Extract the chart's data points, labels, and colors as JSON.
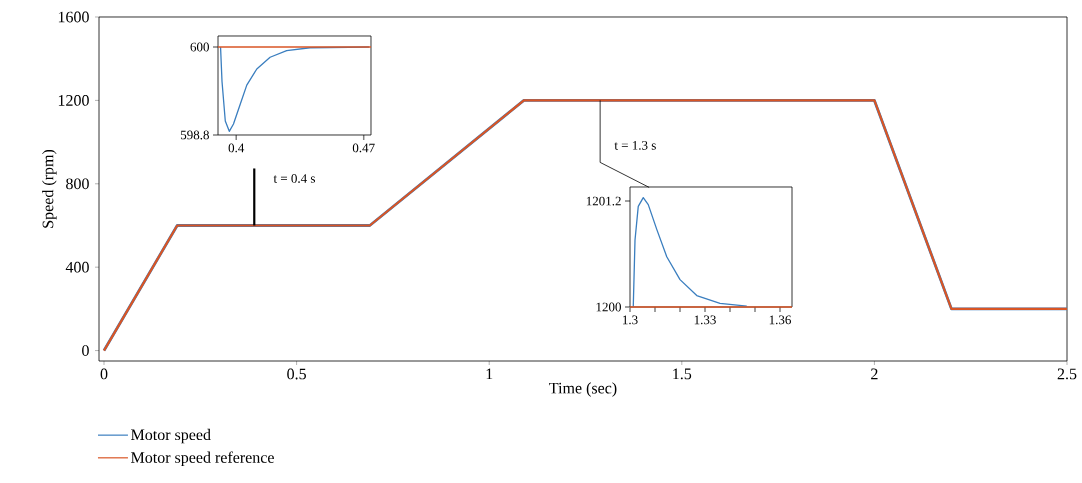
{
  "chart_data": [
    {
      "type": "line",
      "xlabel": "Time (sec)",
      "ylabel": "Speed (rpm)",
      "xlim": [
        -0.013,
        2.5
      ],
      "ylim": [
        -50,
        1600
      ],
      "xticks": [
        0,
        0.5,
        1,
        1.5,
        2,
        2.5
      ],
      "yticks": [
        0,
        400,
        800,
        1200,
        1600
      ],
      "series": [
        {
          "name": "Motor speed",
          "color": "#3a7ebf",
          "x": [
            0,
            0.19,
            0.69,
            1.09,
            2.0,
            2.2,
            2.5
          ],
          "values": [
            0,
            600,
            600,
            1200,
            1200,
            200,
            200
          ]
        },
        {
          "name": "Motor speed reference",
          "color": "#d95525",
          "x": [
            0,
            0.19,
            0.69,
            1.09,
            2.0,
            2.2,
            2.5
          ],
          "values": [
            0,
            600,
            600,
            1200,
            1200,
            200,
            200
          ]
        }
      ],
      "annotations": [
        "t = 0.4 s",
        "t = 1.3 s"
      ],
      "legend": "bottom"
    },
    {
      "type": "line",
      "xlim": [
        0.39,
        0.474
      ],
      "ylim": [
        598.8,
        600.15
      ],
      "xticks": [
        0.4,
        0.47
      ],
      "yticks": [
        598.8,
        600
      ],
      "series": [
        {
          "color": "#3a7ebf",
          "x": [
            0.3914,
            0.3922,
            0.394,
            0.3962,
            0.3985,
            0.4022,
            0.4058,
            0.4113,
            0.4186,
            0.4277,
            0.4405,
            0.473
          ],
          "values": [
            600,
            599.53,
            598.99,
            598.85,
            598.95,
            599.22,
            599.48,
            599.7,
            599.86,
            599.95,
            599.99,
            600
          ]
        },
        {
          "color": "#d95525",
          "x": [
            0.39,
            0.474
          ],
          "values": [
            600,
            600
          ]
        }
      ]
    },
    {
      "type": "line",
      "xlim": [
        1.3,
        1.3648
      ],
      "ylim": [
        1200,
        1201.36
      ],
      "xticks": [
        1.3,
        {
          "value": 1.31,
          "label": null
        },
        {
          "value": 1.32,
          "label": null
        },
        1.33,
        {
          "value": 1.34,
          "label": null
        },
        {
          "value": 1.35,
          "label": null
        },
        1.36
      ],
      "yticks": [
        1200,
        1201.2
      ],
      "series": [
        {
          "color": "#3a7ebf",
          "x": [
            1.3013,
            1.302,
            1.3033,
            1.3053,
            1.3073,
            1.3107,
            1.3147,
            1.32,
            1.3267,
            1.336,
            1.3467
          ],
          "values": [
            1200,
            1200.76,
            1201.14,
            1201.24,
            1201.16,
            1200.88,
            1200.57,
            1200.31,
            1200.13,
            1200.04,
            1200.01
          ]
        },
        {
          "color": "#d95525",
          "x": [
            1.3,
            1.3648
          ],
          "values": [
            1200,
            1200
          ]
        }
      ]
    }
  ]
}
